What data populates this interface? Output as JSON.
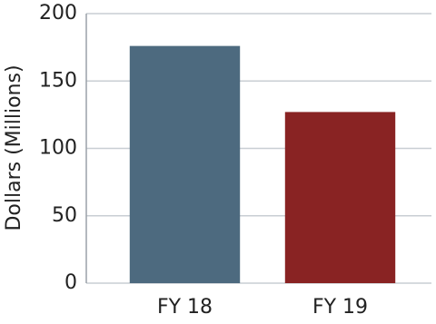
{
  "chart_data": {
    "type": "bar",
    "y_label": "Dollars (Millions)",
    "categories": [
      "FY 18",
      "FY 19"
    ],
    "values": [
      176,
      127
    ],
    "colors": [
      "#4d6a7f",
      "#892323"
    ],
    "ylim": [
      0,
      200
    ],
    "yticks": [
      0,
      50,
      100,
      150,
      200
    ],
    "grid": true
  }
}
